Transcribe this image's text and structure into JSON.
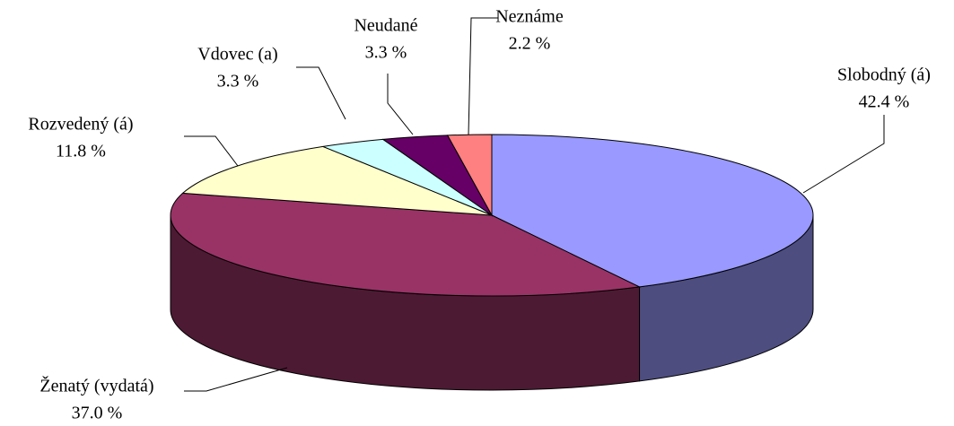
{
  "chart_data": {
    "type": "pie3d",
    "categories": [
      "Slobodný (á)",
      "Ženatý (vydatá)",
      "Rozvedený (á)",
      "Vdovec (a)",
      "Neudané",
      "Neznáme"
    ],
    "values": [
      42.4,
      37.0,
      11.8,
      3.3,
      3.3,
      2.2
    ],
    "value_labels": [
      "42.4 %",
      "37.0 %",
      "11.8 %",
      "3.3 %",
      "3.3 %",
      "2.2 %"
    ],
    "colors": [
      "#9999ff",
      "#993366",
      "#ffffcc",
      "#ccffff",
      "#660066",
      "#ff8080"
    ]
  }
}
